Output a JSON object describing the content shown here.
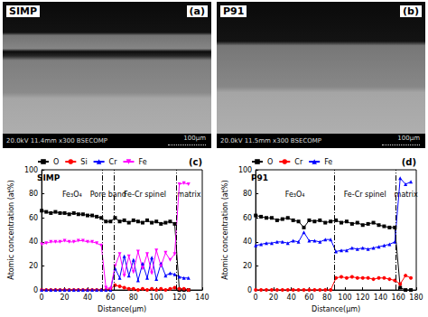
{
  "images": [
    {
      "label": "SIMP",
      "panel": "(a)",
      "info": "20.0kV 11.4mm x300 BSECOMP",
      "scale": "100μm"
    },
    {
      "label": "P91",
      "panel": "(b)",
      "info": "20.0kV 11.5mm x300 BSECOMP",
      "scale": "100μm"
    }
  ],
  "chart_data": [
    {
      "type": "line",
      "title": "SIMP",
      "subtitle": "(c)",
      "x_label": "Distance(μm)",
      "y_label": "Atomic concentration (at%)",
      "x": [
        0,
        4,
        8,
        12,
        16,
        20,
        24,
        28,
        32,
        36,
        40,
        44,
        48,
        52,
        56,
        60,
        64,
        68,
        72,
        76,
        80,
        84,
        88,
        92,
        96,
        100,
        104,
        108,
        112,
        116,
        120,
        124,
        128
      ],
      "series": [
        {
          "name": "O",
          "color": "#000000",
          "marker": "square",
          "values": [
            66,
            65,
            64,
            65,
            64,
            64,
            63,
            64,
            63,
            63,
            62,
            62,
            61,
            60,
            57,
            57,
            60,
            57,
            58,
            56,
            58,
            57,
            56,
            58,
            56,
            57,
            55,
            56,
            57,
            55,
            0,
            0,
            0
          ]
        },
        {
          "name": "Si",
          "color": "#ff0000",
          "marker": "circle",
          "values": [
            0,
            0,
            0,
            0,
            0,
            0,
            0,
            0,
            0,
            0,
            0,
            0,
            0,
            0,
            0,
            1,
            4,
            3,
            2,
            1,
            1,
            0,
            1,
            0,
            1,
            0,
            1,
            0,
            1,
            2,
            1,
            1,
            0
          ]
        },
        {
          "name": "Cr",
          "color": "#0000ff",
          "marker": "triangle",
          "values": [
            0,
            0,
            0,
            0,
            0,
            0,
            0,
            0,
            0,
            0,
            0,
            0,
            0,
            0,
            0,
            0,
            18,
            10,
            28,
            12,
            25,
            8,
            22,
            10,
            27,
            9,
            22,
            12,
            14,
            13,
            11,
            10,
            10
          ]
        },
        {
          "name": "Fe",
          "color": "#ff00ff",
          "marker": "triangle_down",
          "values": [
            38,
            39,
            40,
            40,
            40,
            41,
            40,
            40,
            41,
            41,
            40,
            40,
            39,
            37,
            2,
            1,
            20,
            30,
            12,
            28,
            15,
            32,
            18,
            30,
            14,
            33,
            20,
            31,
            25,
            30,
            88,
            89,
            88
          ]
        }
      ],
      "boundaries": [
        53,
        63,
        117
      ],
      "regions": [
        "Fe₃O₄",
        "Pore band",
        "Fe-Cr spinel",
        "matrix"
      ],
      "xlim": [
        0,
        140
      ],
      "xticks": [
        0,
        20,
        40,
        60,
        80,
        100,
        120,
        140
      ],
      "ylim": [
        0,
        100
      ],
      "yticks": [
        0,
        20,
        40,
        60,
        80,
        100
      ],
      "grid": false,
      "legend": "top"
    },
    {
      "type": "line",
      "title": "P91",
      "subtitle": "(d)",
      "x_label": "Distance(μm)",
      "y_label": "Atomic concentration (at%)",
      "x": [
        0,
        6,
        12,
        18,
        24,
        30,
        36,
        42,
        48,
        54,
        60,
        66,
        72,
        78,
        84,
        90,
        96,
        102,
        108,
        114,
        120,
        126,
        132,
        138,
        144,
        150,
        156,
        162,
        168,
        174
      ],
      "series": [
        {
          "name": "O",
          "color": "#000000",
          "marker": "square",
          "values": [
            62,
            61,
            60,
            60,
            58,
            59,
            60,
            58,
            57,
            52,
            58,
            57,
            58,
            56,
            57,
            58,
            56,
            57,
            55,
            56,
            54,
            55,
            56,
            54,
            53,
            52,
            52,
            2,
            0,
            0
          ]
        },
        {
          "name": "Cr",
          "color": "#ff0000",
          "marker": "circle",
          "values": [
            0,
            0,
            0,
            0,
            0,
            0,
            0,
            0,
            0,
            0,
            0,
            0,
            0,
            0,
            0,
            10,
            11,
            10,
            11,
            10,
            10,
            10,
            9,
            10,
            10,
            9,
            8,
            5,
            12,
            10
          ]
        },
        {
          "name": "Fe",
          "color": "#0000ff",
          "marker": "triangle",
          "values": [
            37,
            38,
            39,
            39,
            40,
            40,
            39,
            41,
            40,
            48,
            41,
            41,
            40,
            42,
            42,
            32,
            33,
            33,
            35,
            34,
            35,
            34,
            35,
            36,
            37,
            38,
            40,
            93,
            88,
            90
          ]
        }
      ],
      "boundaries": [
        88,
        157
      ],
      "regions": [
        "Fe₃O₄",
        "Fe-Cr spinel",
        "matrix"
      ],
      "xlim": [
        0,
        180
      ],
      "xticks": [
        0,
        20,
        40,
        60,
        80,
        100,
        120,
        140,
        160,
        180
      ],
      "ylim": [
        0,
        100
      ],
      "yticks": [
        0,
        20,
        40,
        60,
        80,
        100
      ],
      "grid": false,
      "legend": "top"
    }
  ]
}
